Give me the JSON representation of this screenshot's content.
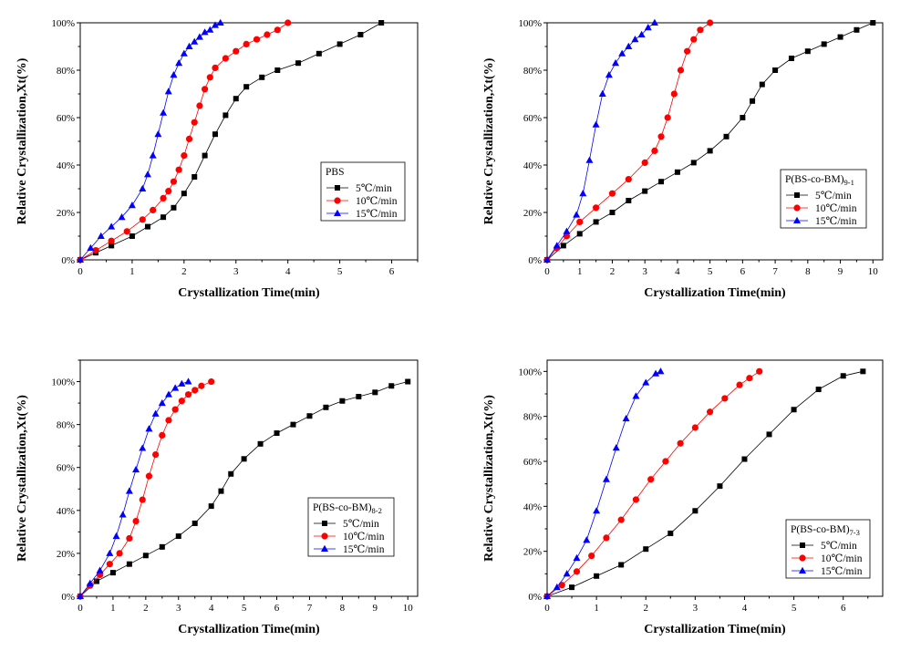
{
  "chart_data": [
    {
      "type": "line",
      "panel": "top-left",
      "xlabel": "Crystallization Time(min)",
      "ylabel": "Relative Crystallization,Xt(%)",
      "xlim": [
        0,
        6.5
      ],
      "ylim": [
        0,
        100
      ],
      "xticks": [
        0,
        1,
        2,
        3,
        4,
        5,
        6
      ],
      "yticks": [
        "0%",
        "20%",
        "40%",
        "60%",
        "80%",
        "100%"
      ],
      "legend": {
        "title": "PBS",
        "title_sub": "",
        "entries": [
          "5℃/min",
          "10℃/min",
          "15℃/min"
        ],
        "placement": "center-right"
      },
      "series": [
        {
          "name": "5℃/min",
          "color": "#000000",
          "marker": "square",
          "x": [
            0,
            0.3,
            0.6,
            1.0,
            1.3,
            1.6,
            1.8,
            2.0,
            2.2,
            2.4,
            2.6,
            2.8,
            3.0,
            3.2,
            3.5,
            3.8,
            4.2,
            4.6,
            5.0,
            5.4,
            5.8
          ],
          "y": [
            0,
            3,
            6,
            10,
            14,
            18,
            22,
            28,
            35,
            44,
            53,
            61,
            68,
            73,
            77,
            80,
            83,
            87,
            91,
            95,
            100
          ]
        },
        {
          "name": "10℃/min",
          "color": "#ff0000",
          "marker": "circle",
          "x": [
            0,
            0.3,
            0.6,
            0.9,
            1.2,
            1.4,
            1.6,
            1.7,
            1.8,
            1.9,
            2.0,
            2.1,
            2.2,
            2.3,
            2.4,
            2.5,
            2.6,
            2.8,
            3.0,
            3.2,
            3.4,
            3.6,
            3.8,
            4.0
          ],
          "y": [
            0,
            4,
            8,
            12,
            17,
            21,
            26,
            29,
            33,
            38,
            44,
            51,
            58,
            65,
            72,
            77,
            81,
            85,
            88,
            91,
            93,
            95,
            97,
            100
          ]
        },
        {
          "name": "15℃/min",
          "color": "#0000ff",
          "marker": "triangle",
          "x": [
            0,
            0.2,
            0.4,
            0.6,
            0.8,
            1.0,
            1.2,
            1.3,
            1.4,
            1.5,
            1.6,
            1.7,
            1.8,
            1.9,
            2.0,
            2.1,
            2.2,
            2.3,
            2.4,
            2.5,
            2.6,
            2.7
          ],
          "y": [
            0,
            5,
            10,
            14,
            18,
            23,
            30,
            36,
            44,
            53,
            62,
            71,
            78,
            83,
            87,
            90,
            92,
            94,
            96,
            97,
            99,
            100
          ]
        }
      ]
    },
    {
      "type": "line",
      "panel": "top-right",
      "xlabel": "Crystallization Time(min)",
      "ylabel": "Relative Crystallization,Xt(%)",
      "xlim": [
        0,
        10.3
      ],
      "ylim": [
        0,
        100
      ],
      "xticks": [
        0,
        1,
        2,
        3,
        4,
        5,
        6,
        7,
        8,
        9,
        10
      ],
      "yticks": [
        "0%",
        "20%",
        "40%",
        "60%",
        "80%",
        "100%"
      ],
      "legend": {
        "title": "P(BS-co-BM)",
        "title_sub": "9-1",
        "entries": [
          "5℃/min",
          "10℃/min",
          "15℃/min"
        ],
        "placement": "right"
      },
      "series": [
        {
          "name": "5℃/min",
          "color": "#000000",
          "marker": "square",
          "x": [
            0,
            0.5,
            1.0,
            1.5,
            2.0,
            2.5,
            3.0,
            3.5,
            4.0,
            4.5,
            5.0,
            5.5,
            6.0,
            6.3,
            6.6,
            7.0,
            7.5,
            8.0,
            8.5,
            9.0,
            9.5,
            10.0
          ],
          "y": [
            0,
            6,
            11,
            16,
            20,
            25,
            29,
            33,
            37,
            41,
            46,
            52,
            60,
            67,
            74,
            80,
            85,
            88,
            91,
            94,
            97,
            100
          ]
        },
        {
          "name": "10℃/min",
          "color": "#ff0000",
          "marker": "circle",
          "x": [
            0,
            0.3,
            0.6,
            1.0,
            1.5,
            2.0,
            2.5,
            3.0,
            3.3,
            3.5,
            3.7,
            3.9,
            4.1,
            4.3,
            4.5,
            4.7,
            5.0
          ],
          "y": [
            0,
            5,
            10,
            16,
            22,
            28,
            34,
            41,
            46,
            52,
            60,
            70,
            80,
            88,
            93,
            97,
            100
          ]
        },
        {
          "name": "15℃/min",
          "color": "#0000ff",
          "marker": "triangle",
          "x": [
            0,
            0.3,
            0.6,
            0.9,
            1.1,
            1.3,
            1.5,
            1.7,
            1.9,
            2.1,
            2.3,
            2.5,
            2.7,
            2.9,
            3.1,
            3.3
          ],
          "y": [
            0,
            6,
            12,
            19,
            28,
            42,
            57,
            70,
            78,
            83,
            87,
            90,
            93,
            95,
            98,
            100
          ]
        }
      ]
    },
    {
      "type": "line",
      "panel": "bottom-left",
      "xlabel": "Crystallization Time(min)",
      "ylabel": "Relative Crystallization,Xt(%)",
      "xlim": [
        0,
        10.3
      ],
      "ylim": [
        0,
        110
      ],
      "xticks": [
        0,
        1,
        2,
        3,
        4,
        5,
        6,
        7,
        8,
        9,
        10
      ],
      "yticks": [
        "0%",
        "20%",
        "40%",
        "60%",
        "80%",
        "100%"
      ],
      "legend": {
        "title": "P(BS-co-BM)",
        "title_sub": "8-2",
        "entries": [
          "5℃/min",
          "10℃/min",
          "15℃/min"
        ],
        "placement": "right"
      },
      "series": [
        {
          "name": "5℃/min",
          "color": "#000000",
          "marker": "square",
          "x": [
            0,
            0.5,
            1.0,
            1.5,
            2.0,
            2.5,
            3.0,
            3.5,
            4.0,
            4.3,
            4.6,
            5.0,
            5.5,
            6.0,
            6.5,
            7.0,
            7.5,
            8.0,
            8.5,
            9.0,
            9.5,
            10.0
          ],
          "y": [
            0,
            7,
            11,
            15,
            19,
            23,
            28,
            34,
            42,
            49,
            57,
            64,
            71,
            76,
            80,
            84,
            88,
            91,
            93,
            95,
            98,
            100
          ]
        },
        {
          "name": "10℃/min",
          "color": "#ff0000",
          "marker": "circle",
          "x": [
            0,
            0.3,
            0.6,
            0.9,
            1.2,
            1.5,
            1.7,
            1.9,
            2.1,
            2.3,
            2.5,
            2.7,
            2.9,
            3.1,
            3.3,
            3.5,
            3.7,
            4.0
          ],
          "y": [
            0,
            5,
            10,
            15,
            20,
            27,
            35,
            45,
            56,
            66,
            75,
            82,
            87,
            91,
            94,
            96,
            98,
            100
          ]
        },
        {
          "name": "15℃/min",
          "color": "#0000ff",
          "marker": "triangle",
          "x": [
            0,
            0.3,
            0.6,
            0.9,
            1.1,
            1.3,
            1.5,
            1.7,
            1.9,
            2.1,
            2.3,
            2.5,
            2.7,
            2.9,
            3.1,
            3.3
          ],
          "y": [
            0,
            6,
            12,
            20,
            28,
            38,
            49,
            59,
            69,
            78,
            85,
            90,
            94,
            97,
            99,
            100
          ]
        }
      ]
    },
    {
      "type": "line",
      "panel": "bottom-right",
      "xlabel": "Crystallization Time(min)",
      "ylabel": "Relative Crystallization,Xt(%)",
      "xlim": [
        0,
        6.8
      ],
      "ylim": [
        0,
        105
      ],
      "xticks": [
        0,
        1,
        2,
        3,
        4,
        5,
        6
      ],
      "yticks": [
        "0%",
        "20%",
        "40%",
        "60%",
        "80%",
        "100%"
      ],
      "legend": {
        "title": "P(BS-co-BM)",
        "title_sub": "7-3",
        "entries": [
          "5℃/min",
          "10℃/min",
          "15℃/min"
        ],
        "placement": "right"
      },
      "series": [
        {
          "name": "5℃/min",
          "color": "#000000",
          "marker": "square",
          "x": [
            0,
            0.5,
            1.0,
            1.5,
            2.0,
            2.5,
            3.0,
            3.5,
            4.0,
            4.5,
            5.0,
            5.5,
            6.0,
            6.4
          ],
          "y": [
            0,
            4,
            9,
            14,
            21,
            28,
            38,
            49,
            61,
            72,
            83,
            92,
            98,
            100
          ]
        },
        {
          "name": "10℃/min",
          "color": "#ff0000",
          "marker": "circle",
          "x": [
            0,
            0.3,
            0.6,
            0.9,
            1.2,
            1.5,
            1.8,
            2.1,
            2.4,
            2.7,
            3.0,
            3.3,
            3.6,
            3.9,
            4.1,
            4.3
          ],
          "y": [
            0,
            5,
            11,
            18,
            26,
            34,
            43,
            52,
            60,
            68,
            75,
            82,
            88,
            94,
            97,
            100
          ]
        },
        {
          "name": "15℃/min",
          "color": "#0000ff",
          "marker": "triangle",
          "x": [
            0,
            0.2,
            0.4,
            0.6,
            0.8,
            1.0,
            1.2,
            1.4,
            1.6,
            1.8,
            2.0,
            2.2,
            2.3
          ],
          "y": [
            0,
            4,
            10,
            17,
            25,
            38,
            52,
            66,
            79,
            89,
            95,
            99,
            100
          ]
        }
      ]
    }
  ]
}
